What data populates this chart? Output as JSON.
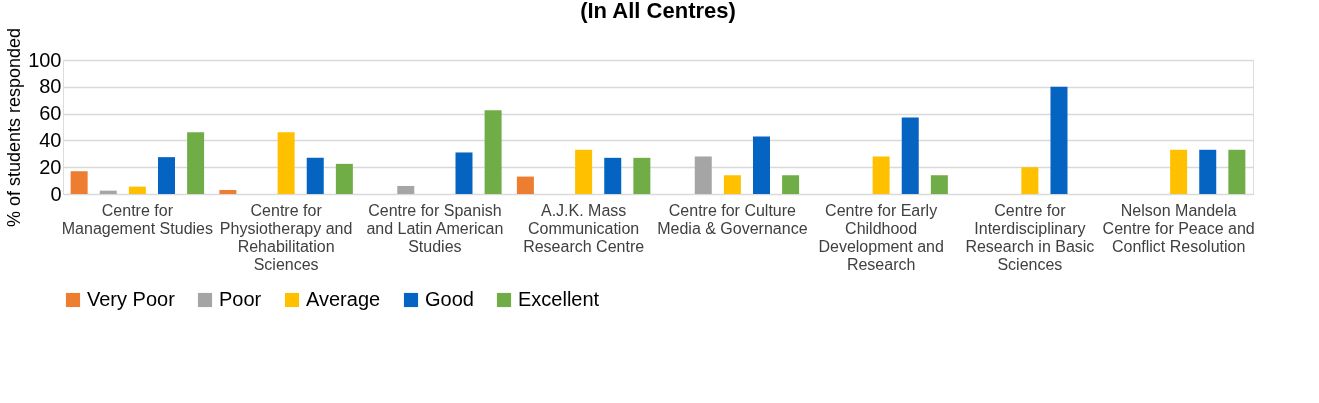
{
  "chart_data": {
    "type": "bar",
    "title": "(In All Centres)",
    "ylabel": "% of students responded",
    "categories": [
      "Centre for Management Studies",
      "Centre for Physiotherapy and Rehabilitation Sciences",
      "Centre for Spanish and Latin American Studies",
      "A.J.K. Mass Communication Research Centre",
      "Centre for Culture Media & Governance",
      "Centre for Early Childhood Development and Research",
      "Centre for Interdisciplinary Research in Basic Sciences",
      "Nelson Mandela Centre for Peace and Conflict Resolution"
    ],
    "series": [
      {
        "name": "Very Poor",
        "color": "#ed7d31",
        "values": [
          17,
          3,
          null,
          13,
          null,
          null,
          null,
          null
        ]
      },
      {
        "name": "Poor",
        "color": "#a5a5a5",
        "values": [
          2.5,
          null,
          6,
          null,
          28,
          null,
          null,
          null
        ]
      },
      {
        "name": "Average",
        "color": "#ffc000",
        "values": [
          5.5,
          46,
          null,
          33,
          14,
          28,
          20,
          33
        ]
      },
      {
        "name": "Good",
        "color": "#0563c1",
        "values": [
          27.5,
          27,
          31,
          27,
          43,
          57,
          80,
          33
        ]
      },
      {
        "name": "Excellent",
        "color": "#70ad47",
        "values": [
          46,
          22.5,
          62.5,
          27,
          14,
          14,
          null,
          33
        ]
      }
    ],
    "ylim": [
      0,
      100
    ],
    "yticks": [
      0,
      20,
      40,
      60,
      80,
      100
    ],
    "grid": "y",
    "legend": "bottom"
  }
}
